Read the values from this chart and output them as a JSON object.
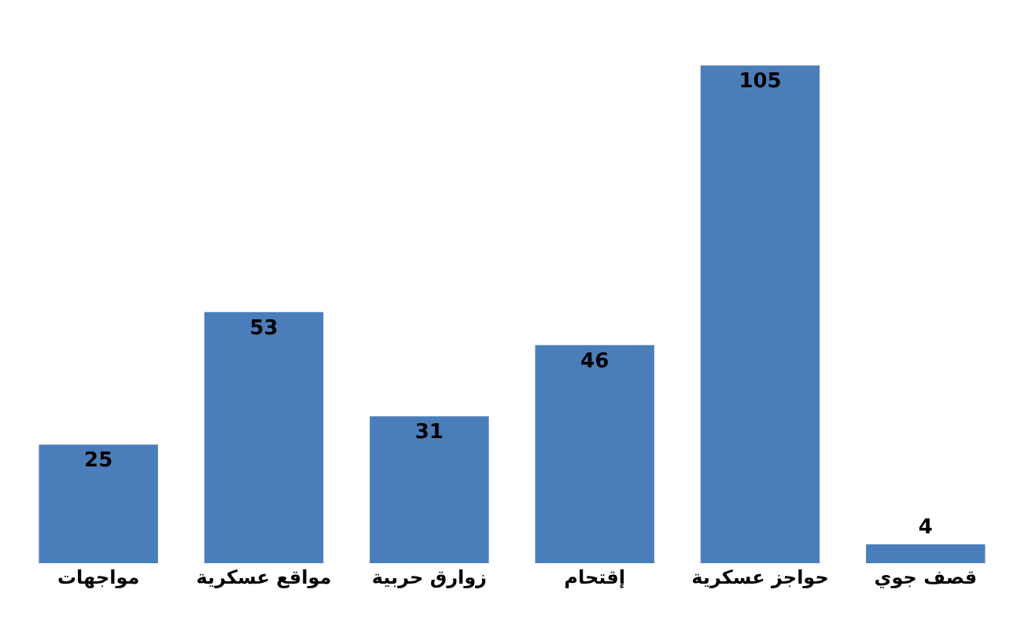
{
  "chart_data": {
    "type": "bar",
    "categories": [
      "مواجهات",
      "مواقع عسكرية",
      "زوارق حربية",
      "إقتحام",
      "حواجز عسكرية",
      "قصف جوي"
    ],
    "values": [
      25,
      53,
      31,
      46,
      105,
      4
    ],
    "color": "#4a7ebb",
    "data_labels": true
  }
}
